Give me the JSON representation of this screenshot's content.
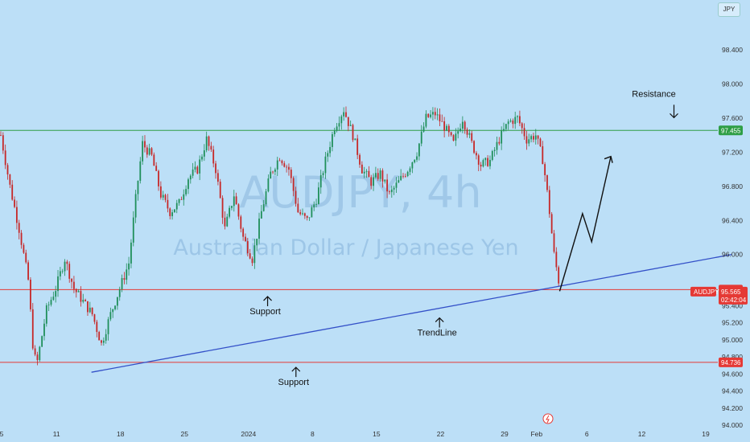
{
  "currency": "JPY",
  "chart_data": {
    "type": "candlestick",
    "watermark": {
      "symbol": "AUDJPY, 4h",
      "name": "Australian Dollar / Japanese Yen"
    },
    "y_ticks": [
      "98.400",
      "98.000",
      "97.600",
      "97.200",
      "96.800",
      "96.400",
      "96.000",
      "95.600",
      "95.400",
      "95.200",
      "95.000",
      "94.800",
      "94.600",
      "94.400",
      "94.200",
      "94.000"
    ],
    "y_tick_values": [
      98.4,
      98.0,
      97.6,
      97.2,
      96.8,
      96.4,
      96.0,
      95.6,
      95.4,
      95.2,
      95.0,
      94.8,
      94.6,
      94.4,
      94.2,
      94.0
    ],
    "x_ticks": [
      {
        "label": "5",
        "x": 0
      },
      {
        "label": "11",
        "x": 6
      },
      {
        "label": "18",
        "x": 13
      },
      {
        "label": "25",
        "x": 20
      },
      {
        "label": "2024",
        "x": 27
      },
      {
        "label": "8",
        "x": 34
      },
      {
        "label": "15",
        "x": 41
      },
      {
        "label": "22",
        "x": 48
      },
      {
        "label": "29",
        "x": 55
      },
      {
        "label": "Feb",
        "x": 58.5
      },
      {
        "label": "6",
        "x": 64
      },
      {
        "label": "12",
        "x": 70
      },
      {
        "label": "19",
        "x": 77
      }
    ],
    "ylim": [
      94.0,
      98.8
    ],
    "xlim": [
      0,
      77.5
    ],
    "close_series": [
      {
        "x": 0,
        "v": 97.4
      },
      {
        "x": 1,
        "v": 96.8
      },
      {
        "x": 2,
        "v": 96.3
      },
      {
        "x": 3,
        "v": 95.7
      },
      {
        "x": 3.6,
        "v": 94.8
      },
      {
        "x": 4,
        "v": 94.75
      },
      {
        "x": 5,
        "v": 95.35
      },
      {
        "x": 6,
        "v": 95.6
      },
      {
        "x": 7,
        "v": 95.95
      },
      {
        "x": 8,
        "v": 95.6
      },
      {
        "x": 9,
        "v": 95.45
      },
      {
        "x": 10,
        "v": 95.3
      },
      {
        "x": 11,
        "v": 94.95
      },
      {
        "x": 12,
        "v": 95.3
      },
      {
        "x": 13,
        "v": 95.6
      },
      {
        "x": 14,
        "v": 95.9
      },
      {
        "x": 14.8,
        "v": 96.7
      },
      {
        "x": 15.5,
        "v": 97.3
      },
      {
        "x": 16.5,
        "v": 97.15
      },
      {
        "x": 17.5,
        "v": 96.7
      },
      {
        "x": 18.5,
        "v": 96.5
      },
      {
        "x": 19.5,
        "v": 96.6
      },
      {
        "x": 20.5,
        "v": 96.9
      },
      {
        "x": 21.5,
        "v": 97.0
      },
      {
        "x": 22.5,
        "v": 97.35
      },
      {
        "x": 23.5,
        "v": 97.0
      },
      {
        "x": 24.5,
        "v": 96.3
      },
      {
        "x": 25.5,
        "v": 96.7
      },
      {
        "x": 26.5,
        "v": 96.2
      },
      {
        "x": 27.5,
        "v": 95.95
      },
      {
        "x": 28.5,
        "v": 96.5
      },
      {
        "x": 29.5,
        "v": 96.95
      },
      {
        "x": 30.5,
        "v": 97.15
      },
      {
        "x": 31.5,
        "v": 97.0
      },
      {
        "x": 32.5,
        "v": 96.5
      },
      {
        "x": 33.5,
        "v": 96.4
      },
      {
        "x": 34.5,
        "v": 96.65
      },
      {
        "x": 35.5,
        "v": 97.1
      },
      {
        "x": 36.5,
        "v": 97.5
      },
      {
        "x": 37.5,
        "v": 97.7
      },
      {
        "x": 38.5,
        "v": 97.4
      },
      {
        "x": 39.5,
        "v": 97.0
      },
      {
        "x": 40.5,
        "v": 96.85
      },
      {
        "x": 41.5,
        "v": 96.95
      },
      {
        "x": 42.5,
        "v": 96.7
      },
      {
        "x": 43.5,
        "v": 96.85
      },
      {
        "x": 44.5,
        "v": 97.0
      },
      {
        "x": 45.5,
        "v": 97.2
      },
      {
        "x": 46.5,
        "v": 97.6
      },
      {
        "x": 47.5,
        "v": 97.65
      },
      {
        "x": 48.5,
        "v": 97.5
      },
      {
        "x": 49.5,
        "v": 97.3
      },
      {
        "x": 50.5,
        "v": 97.6
      },
      {
        "x": 51.5,
        "v": 97.3
      },
      {
        "x": 52.5,
        "v": 97.05
      },
      {
        "x": 53.5,
        "v": 97.1
      },
      {
        "x": 54.5,
        "v": 97.35
      },
      {
        "x": 55.5,
        "v": 97.55
      },
      {
        "x": 56.5,
        "v": 97.6
      },
      {
        "x": 57.5,
        "v": 97.35
      },
      {
        "x": 58.5,
        "v": 97.4
      },
      {
        "x": 59.3,
        "v": 97.1
      },
      {
        "x": 59.9,
        "v": 96.6
      },
      {
        "x": 60.5,
        "v": 96.0
      },
      {
        "x": 61.2,
        "v": 95.57
      }
    ],
    "levels": [
      {
        "name": "resistance",
        "value": 97.455,
        "label": "97.455",
        "color": "#2e9e45"
      },
      {
        "name": "support-upper",
        "value": 95.589,
        "label": "95.589",
        "color": "#e53935"
      },
      {
        "name": "support-lower",
        "value": 94.736,
        "label": "94.736",
        "color": "#e53935"
      }
    ],
    "current": {
      "symbol": "AUDJPY",
      "price": "95.565",
      "countdown": "02:42:04",
      "value": 95.565
    },
    "trendline": {
      "from": {
        "x": 10,
        "v": 94.62
      },
      "to": {
        "x": 80,
        "v": 96.0
      },
      "color": "#3350c8"
    },
    "projection": [
      {
        "x": 61.2,
        "v": 95.57
      },
      {
        "x": 63.7,
        "v": 96.48
      },
      {
        "x": 64.7,
        "v": 96.15
      },
      {
        "x": 66.8,
        "v": 97.15
      }
    ],
    "annotations": [
      {
        "text": "Resistance",
        "x": 71.5,
        "v": 97.85,
        "arrow": "down"
      },
      {
        "text": "Support",
        "x": 29,
        "v": 95.3,
        "arrow": "up"
      },
      {
        "text": "TrendLine",
        "x": 47.8,
        "v": 95.05,
        "arrow": "up"
      },
      {
        "text": "Support",
        "x": 32.1,
        "v": 94.47,
        "arrow": "up"
      }
    ]
  }
}
